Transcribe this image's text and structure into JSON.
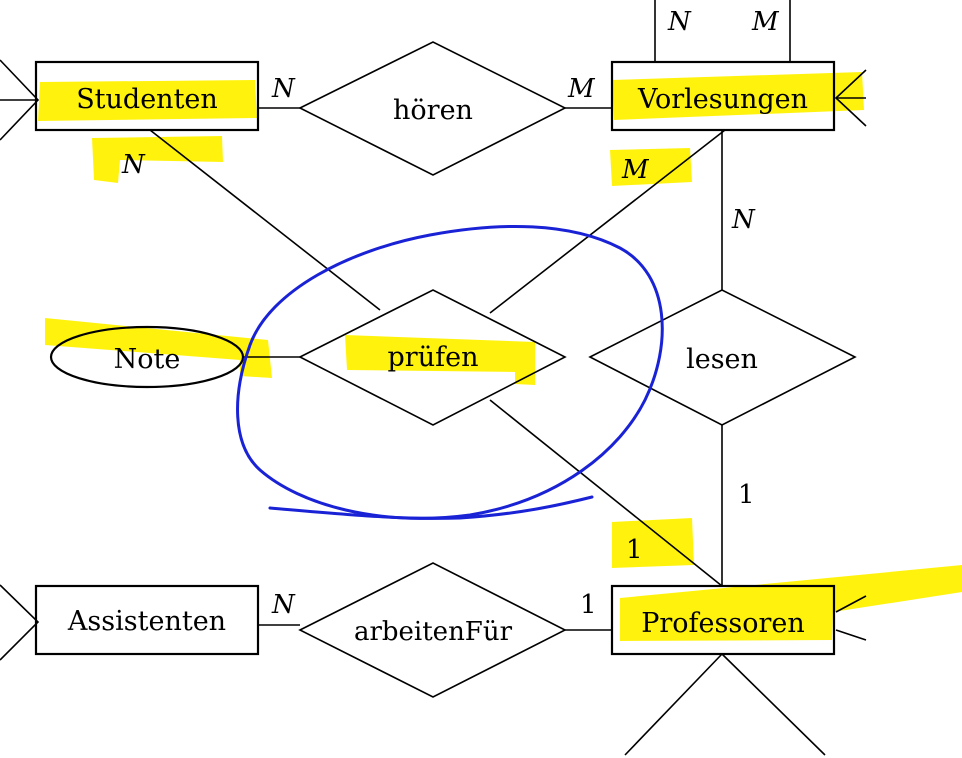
{
  "entities": {
    "studenten": "Studenten",
    "vorlesungen": "Vorlesungen",
    "assistenten": "Assistenten",
    "professoren": "Professoren"
  },
  "relationships": {
    "hoeren": "hören",
    "pruefen": "prüfen",
    "lesen": "lesen",
    "arbeitenFuer": "arbeitenFür"
  },
  "attributes": {
    "note": "Note"
  },
  "cardinalities": {
    "hoeren_studenten": "N",
    "hoeren_vorlesungen": "M",
    "voraussetzen_n": "N",
    "voraussetzen_m": "M",
    "pruefen_studenten": "N",
    "pruefen_vorlesungen": "M",
    "pruefen_professoren": "1",
    "lesen_vorlesungen": "N",
    "lesen_professoren": "1",
    "arbeitenFuer_assistenten": "N",
    "arbeitenFuer_professoren": "1"
  },
  "colors": {
    "highlighter": "#fff200",
    "pen": "#1a22d6",
    "ink": "#000000"
  }
}
